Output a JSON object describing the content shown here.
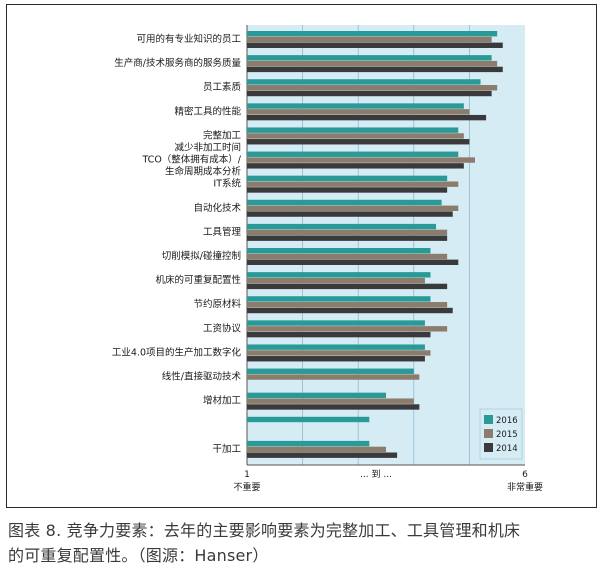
{
  "chart_data": {
    "type": "bar",
    "orientation": "horizontal",
    "categories": [
      "可用的有专业知识的员工",
      "生产商/技术服务商的服务质量",
      "员工素质",
      "精密工具的性能",
      "完整加工",
      [
        "减少非加工时间",
        "TCO（整体拥有成本）/",
        "生命周期成本分析"
      ],
      "IT系统",
      "自动化技术",
      "工具管理",
      "切削模拟/碰撞控制",
      "机床的可重复配置性",
      "节约原材料",
      "工资协议",
      "工业4.0项目的生产加工数字化",
      "线性/直接驱动技术",
      "增材加工",
      "",
      "干加工"
    ],
    "series": [
      {
        "name": "2016",
        "color": "#2a9a98",
        "values": [
          5.5,
          5.4,
          5.2,
          4.9,
          4.8,
          4.8,
          4.6,
          4.5,
          4.4,
          4.3,
          4.3,
          4.3,
          4.2,
          4.2,
          4.0,
          3.5,
          3.2,
          3.2
        ]
      },
      {
        "name": "2015",
        "color": "#8c7c6c",
        "values": [
          5.4,
          5.5,
          5.5,
          5.0,
          4.9,
          5.1,
          4.8,
          4.8,
          4.6,
          4.6,
          4.2,
          4.6,
          4.6,
          4.3,
          4.1,
          4.0,
          null,
          3.5
        ]
      },
      {
        "name": "2014",
        "color": "#3a3a3c",
        "values": [
          5.6,
          5.6,
          5.4,
          5.3,
          5.0,
          4.9,
          4.6,
          4.7,
          4.6,
          4.8,
          4.6,
          4.7,
          4.3,
          4.2,
          null,
          4.1,
          null,
          3.7
        ]
      }
    ],
    "xlim": [
      1,
      6
    ],
    "x_ticks": [
      "1",
      "... 到 ...",
      "6"
    ],
    "x_tick_sublabels": [
      "不重要",
      "",
      "非常重要"
    ],
    "grid": true,
    "legend_position": "bottom-right",
    "background_color": "#d6ecf5"
  },
  "caption": {
    "line1": "图表 8. 竞争力要素：去年的主要影响要素为完整加工、工具管理和机床",
    "line2": "的可重复配置性。（图源：Hanser）"
  }
}
